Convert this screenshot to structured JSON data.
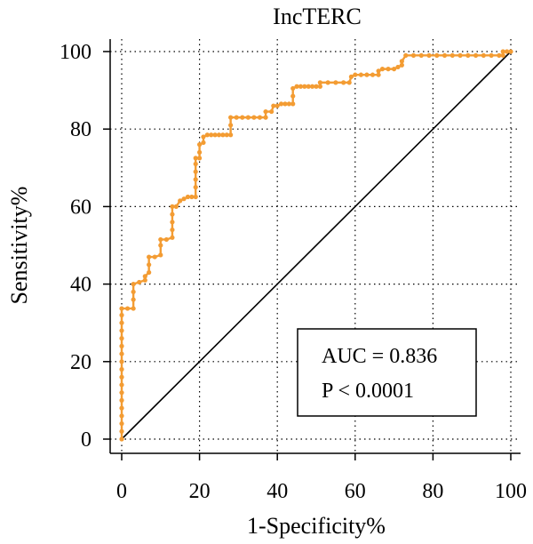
{
  "chart_data": {
    "type": "line",
    "title": "IncTERC",
    "xlabel": "1-Specificity%",
    "ylabel": "Sensitivity%",
    "xlim": [
      0,
      100
    ],
    "ylim": [
      0,
      100
    ],
    "xticks": [
      "0",
      "20",
      "40",
      "60",
      "80",
      "100"
    ],
    "yticks": [
      "0",
      "20",
      "40",
      "60",
      "80",
      "100"
    ],
    "grid": "dotted",
    "annotation": [
      "AUC = 0.836",
      "P < 0.0001"
    ],
    "series": [
      {
        "color": "#F39C33",
        "points": [
          [
            0,
            0
          ],
          [
            0,
            2
          ],
          [
            0,
            4
          ],
          [
            0,
            6
          ],
          [
            0,
            8
          ],
          [
            0,
            10
          ],
          [
            0,
            12
          ],
          [
            0,
            14
          ],
          [
            0,
            16
          ],
          [
            0,
            18
          ],
          [
            0,
            20
          ],
          [
            0,
            22
          ],
          [
            0,
            24
          ],
          [
            0,
            26
          ],
          [
            0,
            28
          ],
          [
            0,
            30
          ],
          [
            0,
            32
          ],
          [
            0,
            33.7
          ],
          [
            1.5,
            33.7
          ],
          [
            3,
            33.7
          ],
          [
            3,
            36
          ],
          [
            3,
            38
          ],
          [
            3,
            40
          ],
          [
            4.5,
            40.5
          ],
          [
            6,
            41
          ],
          [
            6,
            42
          ],
          [
            7,
            43
          ],
          [
            7,
            45
          ],
          [
            7,
            47
          ],
          [
            8.5,
            47
          ],
          [
            10,
            47.5
          ],
          [
            10,
            50
          ],
          [
            10,
            51.5
          ],
          [
            11.5,
            51.5
          ],
          [
            13,
            52
          ],
          [
            13,
            54
          ],
          [
            13,
            56
          ],
          [
            13,
            58
          ],
          [
            13,
            60
          ],
          [
            14,
            60
          ],
          [
            15,
            61.5
          ],
          [
            16,
            62
          ],
          [
            17,
            62.5
          ],
          [
            18,
            62.5
          ],
          [
            19,
            62.5
          ],
          [
            19,
            65
          ],
          [
            19,
            67
          ],
          [
            19,
            69
          ],
          [
            19,
            71
          ],
          [
            19,
            72.5
          ],
          [
            20,
            72.5
          ],
          [
            20,
            74
          ],
          [
            20,
            76
          ],
          [
            21,
            76.5
          ],
          [
            21,
            78
          ],
          [
            22,
            78.5
          ],
          [
            23,
            78.5
          ],
          [
            24,
            78.5
          ],
          [
            25,
            78.5
          ],
          [
            26,
            78.5
          ],
          [
            27,
            78.5
          ],
          [
            28,
            78.5
          ],
          [
            28,
            81
          ],
          [
            28,
            83
          ],
          [
            29.5,
            83
          ],
          [
            31,
            83
          ],
          [
            32.5,
            83
          ],
          [
            34,
            83
          ],
          [
            35.5,
            83
          ],
          [
            37,
            83
          ],
          [
            37,
            84.5
          ],
          [
            38.5,
            84.5
          ],
          [
            39,
            86
          ],
          [
            40,
            86
          ],
          [
            41,
            86.5
          ],
          [
            42,
            86.5
          ],
          [
            43,
            86.5
          ],
          [
            44,
            86.5
          ],
          [
            44,
            88.5
          ],
          [
            44,
            90.5
          ],
          [
            45,
            91
          ],
          [
            46,
            91
          ],
          [
            47,
            91
          ],
          [
            48,
            91
          ],
          [
            49,
            91
          ],
          [
            50,
            91
          ],
          [
            51,
            91
          ],
          [
            51,
            92
          ],
          [
            53,
            92
          ],
          [
            55,
            92
          ],
          [
            57,
            92
          ],
          [
            58.5,
            92
          ],
          [
            59,
            93.5
          ],
          [
            60,
            94
          ],
          [
            61.5,
            94
          ],
          [
            63,
            94
          ],
          [
            64.5,
            94
          ],
          [
            66,
            94
          ],
          [
            66,
            95
          ],
          [
            67,
            95.5
          ],
          [
            68.5,
            95.5
          ],
          [
            70,
            95.5
          ],
          [
            71,
            96
          ],
          [
            72,
            96.5
          ],
          [
            72,
            97.5
          ],
          [
            73,
            99
          ],
          [
            75,
            99
          ],
          [
            77,
            99
          ],
          [
            79,
            99
          ],
          [
            81,
            99
          ],
          [
            83,
            99
          ],
          [
            85,
            99
          ],
          [
            87,
            99
          ],
          [
            89,
            99
          ],
          [
            91,
            99
          ],
          [
            93,
            99
          ],
          [
            95,
            99
          ],
          [
            97,
            99
          ],
          [
            98,
            99
          ],
          [
            98,
            100
          ],
          [
            99,
            100
          ],
          [
            100,
            100
          ]
        ]
      },
      {
        "color": "#000000",
        "points": [
          [
            0,
            0
          ],
          [
            100,
            100
          ]
        ]
      }
    ]
  }
}
